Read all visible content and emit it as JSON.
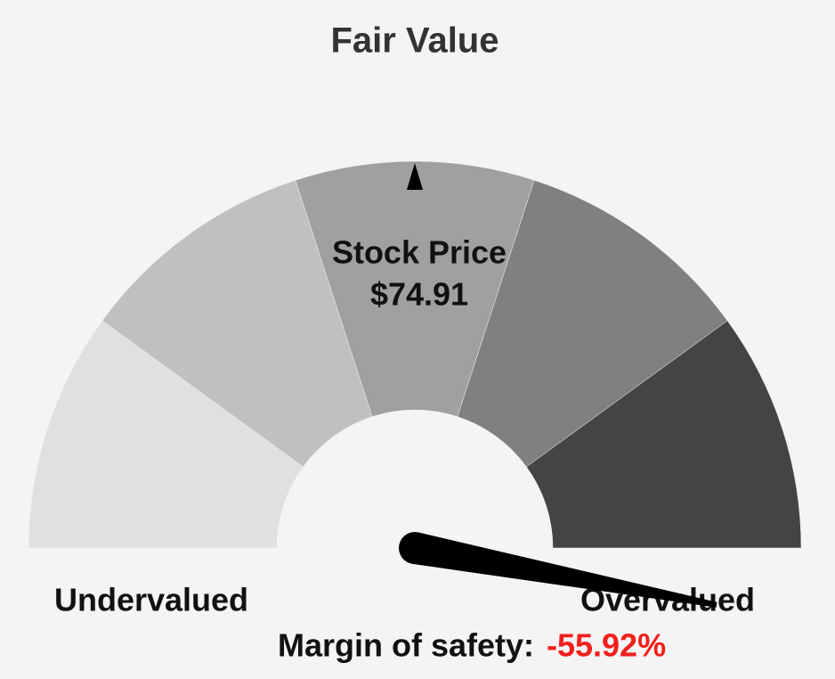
{
  "chart_data": {
    "type": "gauge",
    "title": "Fair Value",
    "lim": [
      50,
      -50
    ],
    "band_colors": [
      "#e0e0e0",
      "#c0c0c0",
      "#a0a0a0",
      "#808080",
      "#444444"
    ],
    "marker": {
      "label": "Stock Price",
      "value": 74.91,
      "value_label": "$74.91"
    },
    "labels": {
      "low": "Undervalued",
      "high": "Overvalued"
    },
    "margin": {
      "label": "Margin of safety:",
      "value": -55.92,
      "value_label": "-55.92%",
      "color": "#f0201c"
    }
  }
}
